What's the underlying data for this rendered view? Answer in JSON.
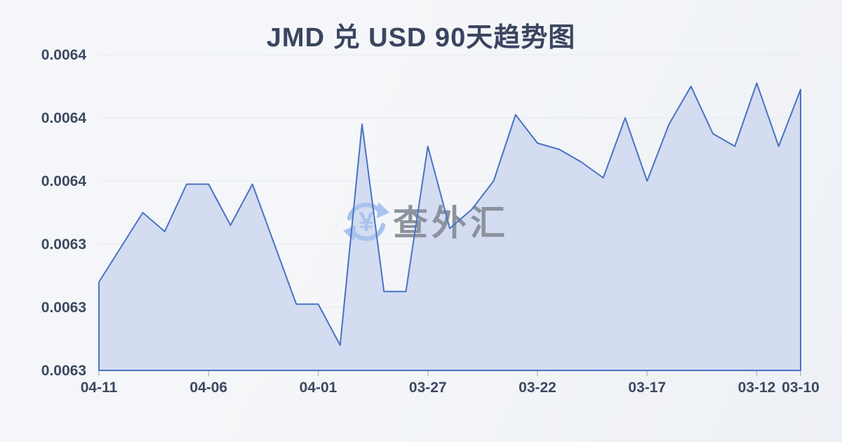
{
  "chart": {
    "title": "JMD 兑 USD 90天趋势图"
  },
  "watermark": {
    "icon": "currency-exchange-icon",
    "symbol": "¥",
    "text": "查外汇"
  },
  "colors": {
    "line": "#4a73c2",
    "area_fill": "#d3dcf1",
    "grid": "#e6e9ef",
    "axis_text": "#3d4960",
    "title_text": "#3a4560",
    "tick": "#b6bdc9",
    "watermark_icon": "#a9c3ed",
    "watermark_text": "#8c939f",
    "background": "#f2f4f8"
  },
  "chart_data": {
    "type": "area",
    "title": "JMD 兑 USD 90天趋势图",
    "xlabel": "",
    "ylabel": "",
    "grid": true,
    "legend_position": "none",
    "ylim": [
      0.0063,
      0.0064
    ],
    "y_tick_labels_top_to_bottom": [
      "0.0064",
      "0.0064",
      "0.0064",
      "0.0063",
      "0.0063",
      "0.0063"
    ],
    "x_axis_labels": [
      "04-11",
      "04-06",
      "04-01",
      "03-27",
      "03-22",
      "03-17",
      "03-12",
      "03-10"
    ],
    "x": [
      "04-11",
      "04-10",
      "04-09",
      "04-08",
      "04-07",
      "04-06",
      "04-05",
      "04-04",
      "04-03",
      "04-02",
      "04-01",
      "03-31",
      "03-30",
      "03-29",
      "03-28",
      "03-27",
      "03-26",
      "03-25",
      "03-24",
      "03-23",
      "03-22",
      "03-21",
      "03-20",
      "03-19",
      "03-18",
      "03-17",
      "03-16",
      "03-15",
      "03-14",
      "03-13",
      "03-12",
      "03-11",
      "03-10"
    ],
    "values": [
      0.006328,
      0.006339,
      0.00635,
      0.006344,
      0.006359,
      0.006359,
      0.006346,
      0.006359,
      0.00634,
      0.006321,
      0.006321,
      0.006308,
      0.006378,
      0.006325,
      0.006325,
      0.006371,
      0.006345,
      0.006351,
      0.00636,
      0.006381,
      0.006372,
      0.00637,
      0.006366,
      0.006361,
      0.00638,
      0.00636,
      0.006378,
      0.00639,
      0.006375,
      0.006371,
      0.006391,
      0.006371,
      0.006389
    ]
  }
}
